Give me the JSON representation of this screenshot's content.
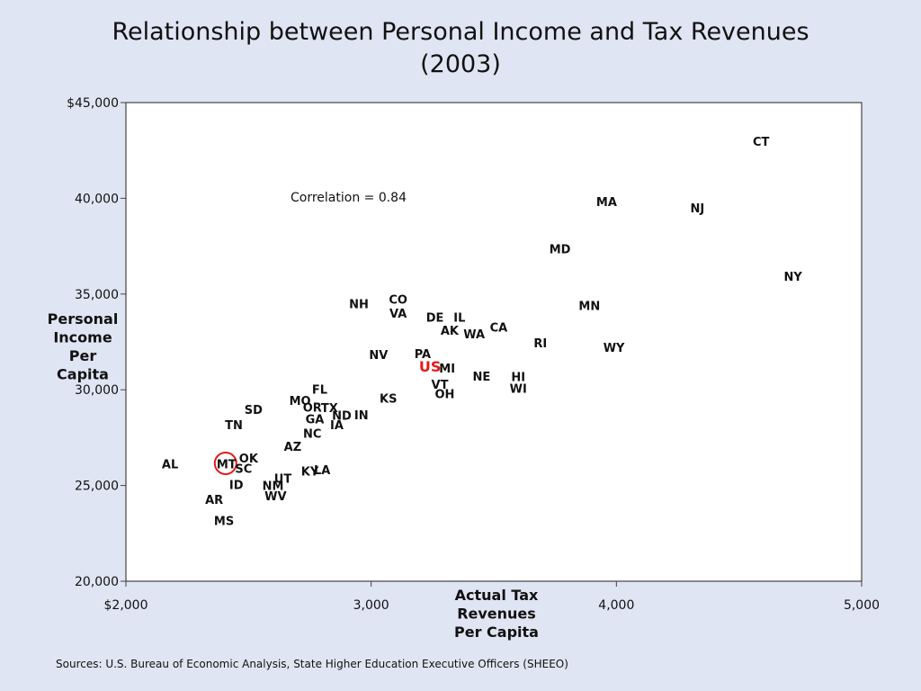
{
  "title_line1": "Relationship between Personal Income and Tax Revenues",
  "title_line2": "(2003)",
  "source_text": "Sources:  U.S. Bureau of Economic Analysis, State Higher Education Executive Officers (SHEEO)",
  "colors": {
    "background": "#dfe5f3",
    "plot_bg": "#ffffff",
    "highlight": "#e21b1b",
    "text": "#111111"
  },
  "chart_data": {
    "type": "scatter",
    "title": "Relationship between Personal Income and Tax Revenues (2003)",
    "xlabel": [
      "Actual Tax",
      "Revenues",
      "Per Capita"
    ],
    "ylabel": [
      "Personal",
      "Income",
      "Per",
      "Capita"
    ],
    "xlim": [
      2000,
      5000
    ],
    "ylim": [
      20000,
      45000
    ],
    "x_ticks": [
      {
        "value": 2000,
        "label": "$2,000"
      },
      {
        "value": 3000,
        "label": "3,000"
      },
      {
        "value": 4000,
        "label": "4,000"
      },
      {
        "value": 5000,
        "label": "5,000"
      }
    ],
    "y_ticks": [
      {
        "value": 20000,
        "label": "20,000"
      },
      {
        "value": 25000,
        "label": "25,000"
      },
      {
        "value": 30000,
        "label": "30,000"
      },
      {
        "value": 35000,
        "label": "35,000"
      },
      {
        "value": 40000,
        "label": "40,000"
      },
      {
        "value": 45000,
        "label": "$45,000"
      }
    ],
    "annotation": "Correlation = 0.84",
    "grid": false,
    "highlight_circle_state": "MT",
    "points": [
      {
        "label": "CT",
        "x": 4590,
        "y": 42960
      },
      {
        "label": "MA",
        "x": 3960,
        "y": 39800
      },
      {
        "label": "NJ",
        "x": 4330,
        "y": 39490
      },
      {
        "label": "MD",
        "x": 3770,
        "y": 37330
      },
      {
        "label": "NY",
        "x": 4720,
        "y": 35900
      },
      {
        "label": "MN",
        "x": 3890,
        "y": 34380
      },
      {
        "label": "NH",
        "x": 2950,
        "y": 34480
      },
      {
        "label": "CO",
        "x": 3110,
        "y": 34710
      },
      {
        "label": "VA",
        "x": 3110,
        "y": 33980
      },
      {
        "label": "DE",
        "x": 3260,
        "y": 33760
      },
      {
        "label": "IL",
        "x": 3360,
        "y": 33760
      },
      {
        "label": "CA",
        "x": 3520,
        "y": 33250
      },
      {
        "label": "AK",
        "x": 3320,
        "y": 33090
      },
      {
        "label": "WA",
        "x": 3420,
        "y": 32890
      },
      {
        "label": "RI",
        "x": 3690,
        "y": 32430
      },
      {
        "label": "WY",
        "x": 3990,
        "y": 32200
      },
      {
        "label": "NV",
        "x": 3030,
        "y": 31830
      },
      {
        "label": "PA",
        "x": 3210,
        "y": 31870
      },
      {
        "label": "US",
        "x": 3240,
        "y": 31170
      },
      {
        "label": "MI",
        "x": 3310,
        "y": 31120
      },
      {
        "label": "NE",
        "x": 3450,
        "y": 30690
      },
      {
        "label": "HI",
        "x": 3600,
        "y": 30660
      },
      {
        "label": "WI",
        "x": 3600,
        "y": 30060
      },
      {
        "label": "VT",
        "x": 3280,
        "y": 30270
      },
      {
        "label": "OH",
        "x": 3300,
        "y": 29780
      },
      {
        "label": "KS",
        "x": 3070,
        "y": 29540
      },
      {
        "label": "FL",
        "x": 2790,
        "y": 30010
      },
      {
        "label": "MO",
        "x": 2710,
        "y": 29420
      },
      {
        "label": "OR",
        "x": 2760,
        "y": 29060
      },
      {
        "label": "TX",
        "x": 2830,
        "y": 29050
      },
      {
        "label": "SD",
        "x": 2520,
        "y": 28960
      },
      {
        "label": "GA",
        "x": 2770,
        "y": 28450
      },
      {
        "label": "ND",
        "x": 2880,
        "y": 28640
      },
      {
        "label": "IN",
        "x": 2960,
        "y": 28660
      },
      {
        "label": "TN",
        "x": 2440,
        "y": 28160
      },
      {
        "label": "IA",
        "x": 2860,
        "y": 28160
      },
      {
        "label": "NC",
        "x": 2760,
        "y": 27710
      },
      {
        "label": "AZ",
        "x": 2680,
        "y": 27030
      },
      {
        "label": "OK",
        "x": 2500,
        "y": 26420
      },
      {
        "label": "MT",
        "x": 2410,
        "y": 26110
      },
      {
        "label": "SC",
        "x": 2480,
        "y": 25870
      },
      {
        "label": "AL",
        "x": 2180,
        "y": 26110
      },
      {
        "label": "KY",
        "x": 2750,
        "y": 25730
      },
      {
        "label": "LA",
        "x": 2800,
        "y": 25800
      },
      {
        "label": "UT",
        "x": 2640,
        "y": 25360
      },
      {
        "label": "ID",
        "x": 2450,
        "y": 25030
      },
      {
        "label": "NM",
        "x": 2600,
        "y": 24990
      },
      {
        "label": "WV",
        "x": 2610,
        "y": 24450
      },
      {
        "label": "AR",
        "x": 2360,
        "y": 24250
      },
      {
        "label": "MS",
        "x": 2400,
        "y": 23140
      }
    ]
  }
}
